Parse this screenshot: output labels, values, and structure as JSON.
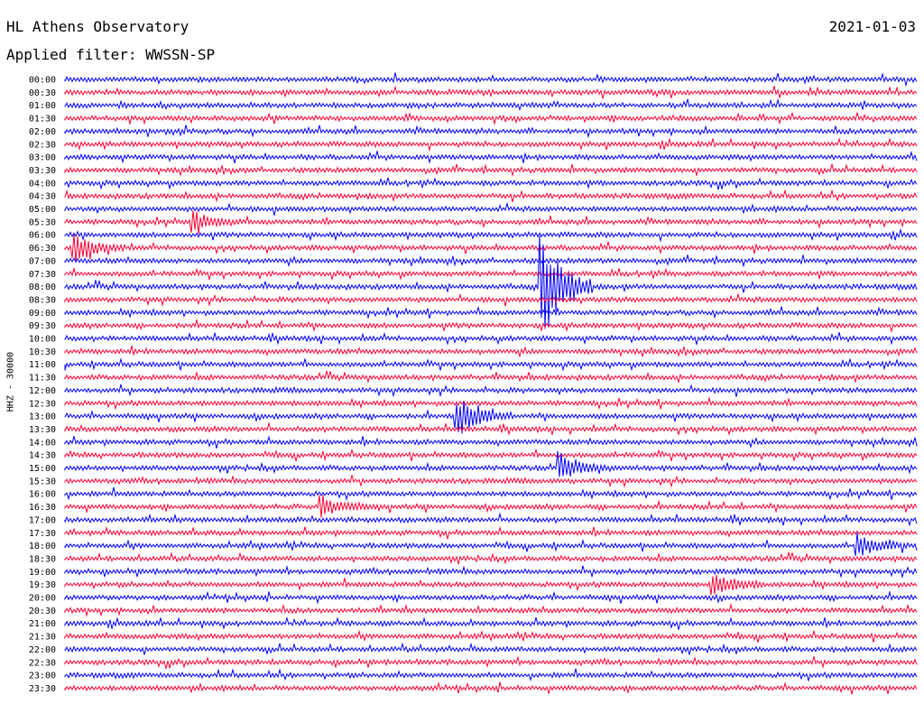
{
  "header": {
    "observatory": "HL Athens Observatory",
    "date": "2021-01-03",
    "filter": "Applied filter: WWSSN-SP"
  },
  "chart_data": {
    "type": "line",
    "subtype": "helicorder",
    "station_label": "HHZ - 30000",
    "row_labels": [
      "00:00",
      "00:30",
      "01:00",
      "01:30",
      "02:00",
      "02:30",
      "03:00",
      "03:30",
      "04:00",
      "04:30",
      "05:00",
      "05:30",
      "06:00",
      "06:30",
      "07:00",
      "07:30",
      "08:00",
      "08:30",
      "09:00",
      "09:30",
      "10:00",
      "10:30",
      "11:00",
      "11:30",
      "12:00",
      "12:30",
      "13:00",
      "13:30",
      "14:00",
      "14:30",
      "15:00",
      "15:30",
      "16:00",
      "16:30",
      "17:00",
      "17:30",
      "18:00",
      "18:30",
      "19:00",
      "19:30",
      "20:00",
      "20:30",
      "21:00",
      "21:30",
      "22:00",
      "22:30",
      "23:00",
      "23:30"
    ],
    "colors": [
      "#0000ff",
      "#ff0033"
    ],
    "grid": false,
    "events": [
      {
        "row": "08:00",
        "x_frac": 0.559,
        "amplitude": 1.0,
        "label": ""
      },
      {
        "row": "13:00",
        "x_frac": 0.46,
        "amplitude": 0.35,
        "label": ""
      },
      {
        "row": "06:30",
        "x_frac": 0.01,
        "amplitude": 0.25,
        "label": ""
      },
      {
        "row": "05:30",
        "x_frac": 0.15,
        "amplitude": 0.18,
        "label": ""
      },
      {
        "row": "15:00",
        "x_frac": 0.58,
        "amplitude": 0.2,
        "label": ""
      },
      {
        "row": "16:30",
        "x_frac": 0.3,
        "amplitude": 0.18,
        "label": ""
      },
      {
        "row": "18:00",
        "x_frac": 0.93,
        "amplitude": 0.2,
        "label": ""
      },
      {
        "row": "19:30",
        "x_frac": 0.76,
        "amplitude": 0.2,
        "label": ""
      }
    ]
  }
}
